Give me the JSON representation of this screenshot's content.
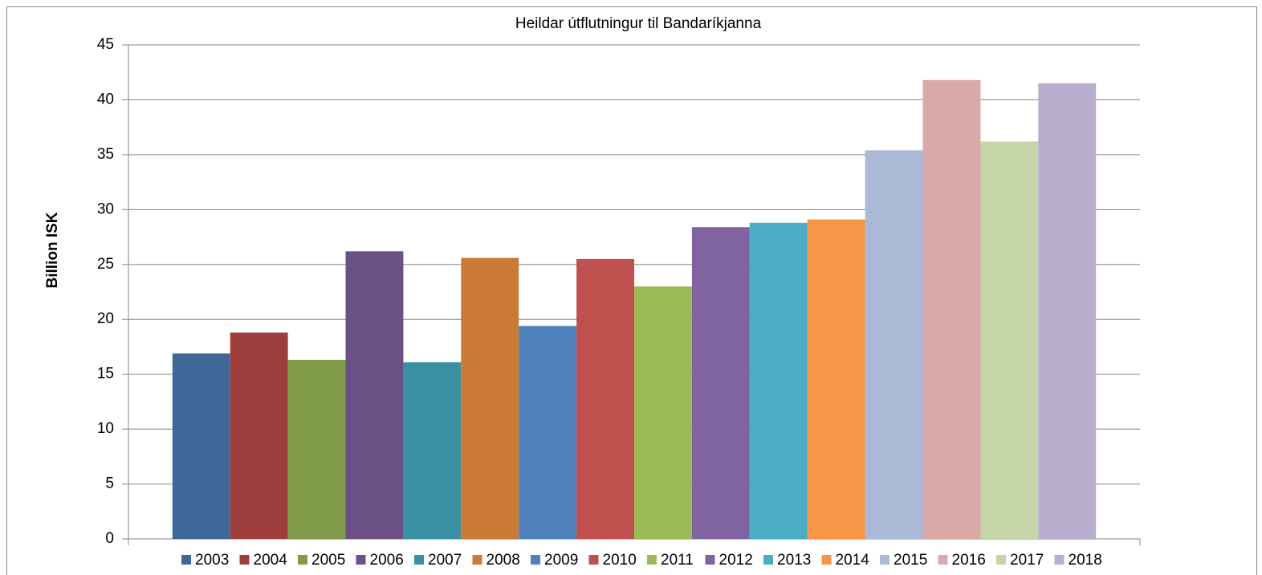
{
  "chart_data": {
    "type": "bar",
    "title": "Heildar útflutningur til Bandaríkjanna",
    "y_label": "Billion ISK",
    "categories": [
      null
    ],
    "series": [
      {
        "name": "2003",
        "color": "#3f6797",
        "values": [
          16.9
        ]
      },
      {
        "name": "2004",
        "color": "#9e3f3d",
        "values": [
          18.8
        ]
      },
      {
        "name": "2005",
        "color": "#7f9a48",
        "values": [
          16.3
        ]
      },
      {
        "name": "2006",
        "color": "#6a5084",
        "values": [
          26.2
        ]
      },
      {
        "name": "2007",
        "color": "#3a8fa3",
        "values": [
          16.1
        ]
      },
      {
        "name": "2008",
        "color": "#cb7a36",
        "values": [
          25.6
        ]
      },
      {
        "name": "2009",
        "color": "#4f81bd",
        "values": [
          19.4
        ]
      },
      {
        "name": "2010",
        "color": "#c0504d",
        "values": [
          25.5
        ]
      },
      {
        "name": "2011",
        "color": "#9bbb59",
        "values": [
          23.0
        ]
      },
      {
        "name": "2012",
        "color": "#8064a2",
        "values": [
          28.4
        ]
      },
      {
        "name": "2013",
        "color": "#4bacc6",
        "values": [
          28.8
        ]
      },
      {
        "name": "2014",
        "color": "#f79646",
        "values": [
          29.1
        ]
      },
      {
        "name": "2015",
        "color": "#aabad7",
        "values": [
          35.4
        ]
      },
      {
        "name": "2016",
        "color": "#d9a9a8",
        "values": [
          41.8
        ]
      },
      {
        "name": "2017",
        "color": "#c6d5a8",
        "values": [
          36.2
        ]
      },
      {
        "name": "2018",
        "color": "#b9aecb",
        "values": [
          41.5
        ]
      }
    ],
    "ylim": [
      0,
      45
    ],
    "yticks": [
      0,
      5,
      10,
      15,
      20,
      25,
      30,
      35,
      40,
      45
    ],
    "grid": true,
    "legend": "bottom"
  }
}
